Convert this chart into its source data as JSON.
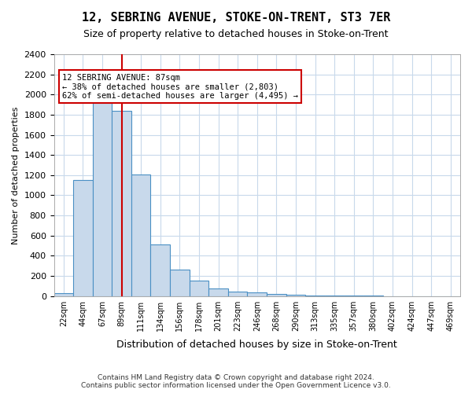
{
  "title1": "12, SEBRING AVENUE, STOKE-ON-TRENT, ST3 7ER",
  "title2": "Size of property relative to detached houses in Stoke-on-Trent",
  "xlabel": "Distribution of detached houses by size in Stoke-on-Trent",
  "ylabel": "Number of detached properties",
  "footer1": "Contains HM Land Registry data © Crown copyright and database right 2024.",
  "footer2": "Contains public sector information licensed under the Open Government Licence v3.0.",
  "bin_labels": [
    "22sqm",
    "44sqm",
    "67sqm",
    "89sqm",
    "111sqm",
    "134sqm",
    "156sqm",
    "178sqm",
    "201sqm",
    "223sqm",
    "246sqm",
    "268sqm",
    "290sqm",
    "313sqm",
    "335sqm",
    "357sqm",
    "380sqm",
    "402sqm",
    "424sqm",
    "447sqm",
    "469sqm"
  ],
  "bar_heights": [
    30,
    1150,
    1950,
    1840,
    1210,
    510,
    265,
    155,
    75,
    42,
    38,
    18,
    12,
    8,
    5,
    3,
    2,
    1,
    0,
    0,
    0
  ],
  "bar_color": "#c8d9eb",
  "bar_edge_color": "#4a90c4",
  "grid_color": "#c8d9eb",
  "vline_x_index": 3,
  "vline_color": "#cc0000",
  "annotation_text": "12 SEBRING AVENUE: 87sqm\n← 38% of detached houses are smaller (2,803)\n62% of semi-detached houses are larger (4,495) →",
  "annotation_box_color": "#ffffff",
  "annotation_box_edge": "#cc0000",
  "ylim": [
    0,
    2400
  ],
  "yticks": [
    0,
    200,
    400,
    600,
    800,
    1000,
    1200,
    1400,
    1600,
    1800,
    2000,
    2200,
    2400
  ],
  "background_color": "#ffffff"
}
